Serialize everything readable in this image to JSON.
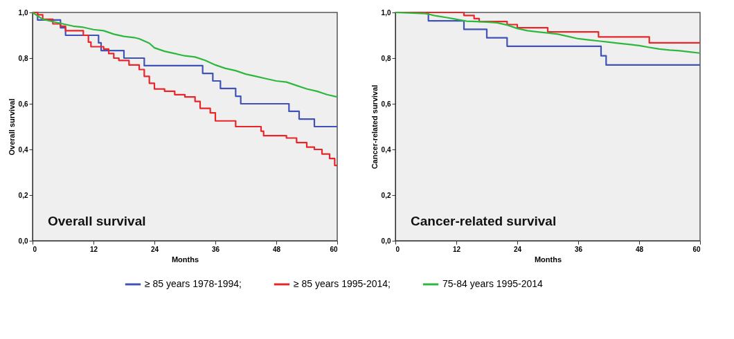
{
  "chart_data": [
    {
      "type": "step",
      "xlabel": "Months",
      "ylabel": "Overall survival",
      "annotations": [
        "Overall survival"
      ],
      "xlim": [
        0,
        60
      ],
      "xticks": [
        0,
        12,
        24,
        36,
        48,
        60
      ],
      "ylim": [
        0,
        1
      ],
      "yticks": [
        {
          "value": 0,
          "label": "0,0"
        },
        {
          "value": 0.2,
          "label": "0,2"
        },
        {
          "value": 0.4,
          "label": "0,4"
        },
        {
          "value": 0.6,
          "label": "0,6"
        },
        {
          "value": 0.8,
          "label": "0,8"
        },
        {
          "value": 1,
          "label": "1,0"
        }
      ],
      "legend": "bottom",
      "grid": false,
      "series": [
        {
          "name": "≥ 85 years 1978-1994;",
          "color": "#4052b5",
          "x": [
            0,
            1,
            5.5,
            6.5,
            13,
            13.5,
            18,
            22,
            33.5,
            35.5,
            37,
            40,
            41,
            50.5,
            52.5,
            55.5,
            60
          ],
          "values": [
            1.0,
            0.967,
            0.933,
            0.9,
            0.867,
            0.833,
            0.8,
            0.767,
            0.733,
            0.7,
            0.667,
            0.633,
            0.6,
            0.567,
            0.533,
            0.5,
            0.5
          ]
        },
        {
          "name": "≥ 85 years 1995-2014;",
          "color": "#e8262a",
          "x": [
            0,
            1,
            2,
            4,
            5.5,
            6.5,
            10,
            11,
            11.5,
            14,
            15,
            16,
            17,
            19,
            21,
            22,
            23,
            24,
            26,
            28,
            30,
            32,
            33,
            35,
            36,
            40,
            45,
            45.5,
            50,
            52,
            54,
            55.5,
            57,
            58.5,
            59.5,
            60
          ],
          "values": [
            1.0,
            0.99,
            0.97,
            0.95,
            0.94,
            0.92,
            0.9,
            0.87,
            0.85,
            0.84,
            0.82,
            0.8,
            0.79,
            0.77,
            0.75,
            0.72,
            0.69,
            0.665,
            0.655,
            0.64,
            0.63,
            0.61,
            0.58,
            0.56,
            0.525,
            0.5,
            0.48,
            0.46,
            0.45,
            0.43,
            0.41,
            0.4,
            0.38,
            0.36,
            0.33,
            0.33
          ]
        },
        {
          "name": "75-84 years 1995-2014",
          "color": "#2db83d",
          "type": "line",
          "x": [
            0,
            2,
            4,
            6,
            8,
            10,
            12,
            14,
            16,
            18,
            20,
            21,
            23,
            24,
            26,
            28,
            30,
            32,
            34,
            36,
            38,
            40,
            42,
            44,
            46,
            48,
            50,
            52,
            54,
            56,
            58,
            60
          ],
          "values": [
            1.0,
            0.97,
            0.96,
            0.95,
            0.94,
            0.935,
            0.925,
            0.92,
            0.905,
            0.895,
            0.89,
            0.885,
            0.865,
            0.845,
            0.83,
            0.82,
            0.81,
            0.805,
            0.79,
            0.77,
            0.755,
            0.745,
            0.73,
            0.72,
            0.71,
            0.7,
            0.695,
            0.68,
            0.665,
            0.655,
            0.64,
            0.63
          ]
        }
      ]
    },
    {
      "type": "step",
      "xlabel": "Months",
      "ylabel": "Cancer-related survival",
      "annotations": [
        "Cancer-related survival"
      ],
      "xlim": [
        0,
        60
      ],
      "xticks": [
        0,
        12,
        24,
        36,
        48,
        60
      ],
      "ylim": [
        0,
        1
      ],
      "yticks": [
        {
          "value": 0,
          "label": "0,0"
        },
        {
          "value": 0.2,
          "label": "0,2"
        },
        {
          "value": 0.4,
          "label": "0,4"
        },
        {
          "value": 0.6,
          "label": "0,6"
        },
        {
          "value": 0.8,
          "label": "0,8"
        },
        {
          "value": 1,
          "label": "1,0"
        }
      ],
      "legend": "bottom",
      "grid": false,
      "series": [
        {
          "name": "≥ 85 years 1978-1994;",
          "color": "#4052b5",
          "x": [
            0,
            6.5,
            13.5,
            18,
            22,
            40.5,
            41.5,
            60
          ],
          "values": [
            1.0,
            0.963,
            0.926,
            0.889,
            0.852,
            0.81,
            0.77,
            0.77
          ]
        },
        {
          "name": "≥ 85 years 1995-2014;",
          "color": "#e8262a",
          "x": [
            0,
            13.5,
            15.5,
            16.5,
            22,
            24,
            30,
            40,
            50,
            60
          ],
          "values": [
            1.0,
            0.987,
            0.973,
            0.96,
            0.947,
            0.933,
            0.915,
            0.893,
            0.867,
            0.867
          ]
        },
        {
          "name": "75-84 years 1995-2014",
          "color": "#2db83d",
          "type": "line",
          "x": [
            0,
            6,
            8,
            10,
            12,
            14,
            16,
            18,
            20,
            22,
            24,
            26,
            28,
            30,
            32,
            34,
            36,
            38,
            40,
            42,
            44,
            46,
            48,
            50,
            52,
            54,
            56,
            58,
            60
          ],
          "values": [
            1.0,
            0.995,
            0.985,
            0.978,
            0.97,
            0.962,
            0.96,
            0.958,
            0.955,
            0.945,
            0.93,
            0.92,
            0.915,
            0.91,
            0.905,
            0.895,
            0.885,
            0.88,
            0.875,
            0.87,
            0.865,
            0.86,
            0.855,
            0.847,
            0.84,
            0.835,
            0.832,
            0.827,
            0.822
          ]
        }
      ]
    }
  ]
}
